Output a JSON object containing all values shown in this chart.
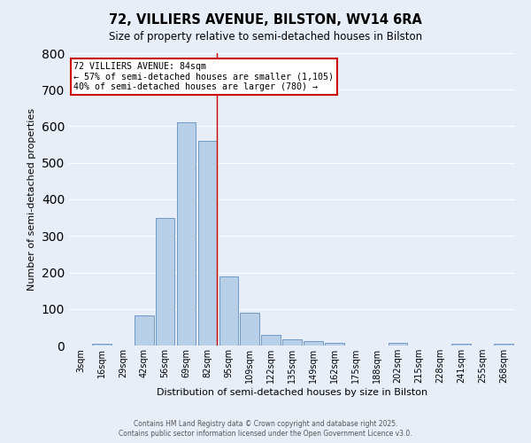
{
  "title": "72, VILLIERS AVENUE, BILSTON, WV14 6RA",
  "subtitle": "Size of property relative to semi-detached houses in Bilston",
  "xlabel": "Distribution of semi-detached houses by size in Bilston",
  "ylabel": "Number of semi-detached properties",
  "bar_labels": [
    "3sqm",
    "16sqm",
    "29sqm",
    "42sqm",
    "56sqm",
    "69sqm",
    "82sqm",
    "95sqm",
    "109sqm",
    "122sqm",
    "135sqm",
    "149sqm",
    "162sqm",
    "175sqm",
    "188sqm",
    "202sqm",
    "215sqm",
    "228sqm",
    "241sqm",
    "255sqm",
    "268sqm"
  ],
  "bar_values": [
    0,
    5,
    0,
    82,
    350,
    610,
    560,
    190,
    90,
    28,
    18,
    12,
    8,
    0,
    0,
    7,
    0,
    0,
    5,
    0,
    5
  ],
  "bar_color": "#b8cfe8",
  "bar_edge_color": "#6090c0",
  "background_color": "#e8eef8",
  "grid_color": "#ffffff",
  "ylim": [
    0,
    800
  ],
  "yticks": [
    0,
    100,
    200,
    300,
    400,
    500,
    600,
    700,
    800
  ],
  "annotation_line1": "72 VILLIERS AVENUE: 84sqm",
  "annotation_line2": "← 57% of semi-detached houses are smaller (1,105)",
  "annotation_line3": "40% of semi-detached houses are larger (780) →",
  "annotation_box_facecolor": "#ffffff",
  "annotation_box_edgecolor": "#cc0000",
  "vline_color": "#cc0000",
  "vline_index": 6,
  "footer1": "Contains HM Land Registry data © Crown copyright and database right 2025.",
  "footer2": "Contains public sector information licensed under the Open Government Licence v3.0."
}
